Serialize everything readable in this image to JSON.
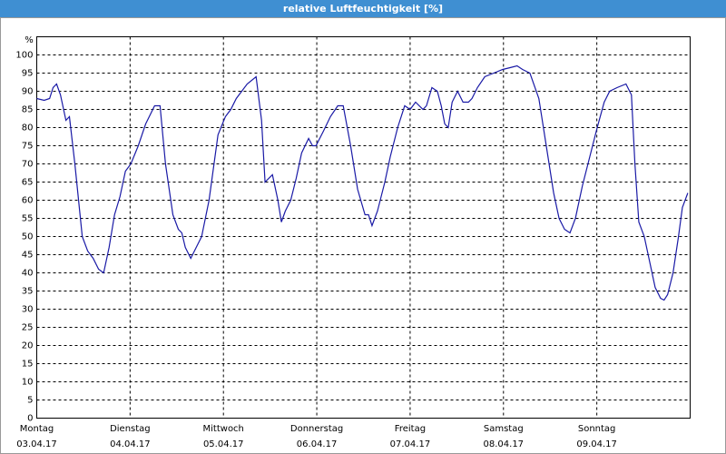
{
  "chart_data": {
    "type": "line",
    "title": "relative Luftfeuchtigkeit [%]",
    "y_unit": "%",
    "x": [
      0,
      1.9,
      3.3,
      4.2,
      5.1,
      6.1,
      7.5,
      8.4,
      9.8,
      11.7,
      13.1,
      14.5,
      15.9,
      17.2,
      18.6,
      20.0,
      21.4,
      22.8,
      24.2,
      26.1,
      28.0,
      30.3,
      31.7,
      33.1,
      35.0,
      36.4,
      37.3,
      38.2,
      39.6,
      41.0,
      42.4,
      44.3,
      46.6,
      48.5,
      49.9,
      51.3,
      52.7,
      54.1,
      56.4,
      57.8,
      58.7,
      60.6,
      62.0,
      62.9,
      63.9,
      65.3,
      66.7,
      68.1,
      69.9,
      70.9,
      71.8,
      73.7,
      75.5,
      77.4,
      78.8,
      80.7,
      82.5,
      84.4,
      85.3,
      86.2,
      87.6,
      89.5,
      90.9,
      92.8,
      94.6,
      96.0,
      97.4,
      99.3,
      100.2,
      101.6,
      103.0,
      104.0,
      104.9,
      105.8,
      106.8,
      108.2,
      109.6,
      111.0,
      111.9,
      113.3,
      115.2,
      117.5,
      119.8,
      121.7,
      123.5,
      124.9,
      126.8,
      129.1,
      131.0,
      132.9,
      134.3,
      135.7,
      137.1,
      138.5,
      140.3,
      142.2,
      144.1,
      145.9,
      147.3,
      149.2,
      151.5,
      152.9,
      153.8,
      154.8,
      156.2,
      157.6,
      159.0,
      160.4,
      161.3,
      162.2,
      163.6,
      165.0,
      166.0,
      167.4
    ],
    "series": [
      {
        "name": "relative Luftfeuchtigkeit",
        "color": "#1a1aa6",
        "values": [
          88,
          87.5,
          88,
          91,
          92,
          89,
          82,
          83,
          70,
          50,
          46,
          44,
          41,
          40,
          47,
          56,
          61,
          68,
          70,
          75,
          81,
          86,
          86,
          70,
          56,
          52,
          51,
          47,
          44,
          47,
          50,
          60,
          78,
          83,
          85,
          88,
          90,
          92,
          94,
          82,
          65,
          67,
          60,
          54,
          57,
          60,
          66,
          73,
          77,
          75,
          75,
          79,
          83,
          86,
          86,
          75,
          63,
          56,
          56,
          53,
          57,
          65,
          72,
          80,
          86,
          85,
          87,
          85,
          86,
          91,
          90,
          86,
          81,
          80,
          87,
          90,
          87,
          87,
          88,
          91,
          94,
          95,
          96,
          96.5,
          97,
          96,
          95,
          88,
          75,
          62,
          55,
          52,
          51,
          55,
          64,
          72,
          80,
          87,
          90,
          91,
          92,
          89,
          70,
          54,
          50,
          43,
          36,
          33,
          32.5,
          34,
          40,
          50,
          58,
          62
        ]
      }
    ],
    "xlim": [
      0,
      168
    ],
    "xticks": [
      {
        "value": 0,
        "label": "Montag",
        "date": "03.04.17"
      },
      {
        "value": 24,
        "label": "Dienstag",
        "date": "04.04.17"
      },
      {
        "value": 48,
        "label": "Mittwoch",
        "date": "05.04.17"
      },
      {
        "value": 72,
        "label": "Donnerstag",
        "date": "06.04.17"
      },
      {
        "value": 96,
        "label": "Freitag",
        "date": "07.04.17"
      },
      {
        "value": 120,
        "label": "Samstag",
        "date": "08.04.17"
      },
      {
        "value": 144,
        "label": "Sonntag",
        "date": "09.04.17"
      }
    ],
    "ylim": [
      0,
      105
    ],
    "yticks": [
      0,
      5,
      10,
      15,
      20,
      25,
      30,
      35,
      40,
      45,
      50,
      55,
      60,
      65,
      70,
      75,
      80,
      85,
      90,
      95,
      100
    ],
    "grid": true
  }
}
